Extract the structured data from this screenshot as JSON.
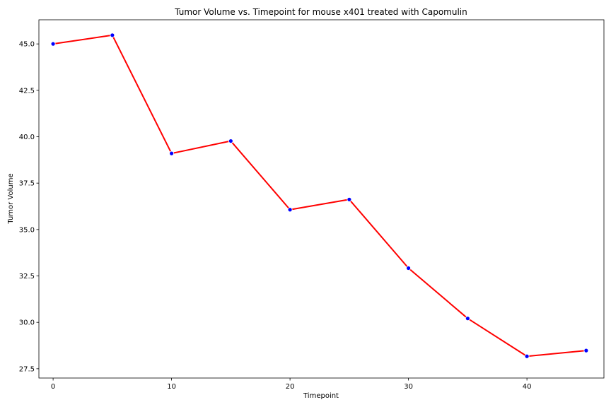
{
  "chart_data": {
    "type": "line",
    "title": "Tumor Volume vs. Timepoint for mouse x401 treated with Capomulin",
    "xlabel": "Timepoint",
    "ylabel": "Tumor Volume",
    "xlim": [
      -1.2,
      46.5
    ],
    "ylim": [
      27.0,
      46.3
    ],
    "xticks": [
      0,
      10,
      20,
      30,
      40
    ],
    "xtick_labels": [
      "0",
      "10",
      "20",
      "30",
      "40"
    ],
    "yticks": [
      27.5,
      30.0,
      32.5,
      35.0,
      37.5,
      40.0,
      42.5,
      45.0
    ],
    "ytick_labels": [
      "27.5",
      "30.0",
      "32.5",
      "35.0",
      "37.5",
      "40.0",
      "42.5",
      "45.0"
    ],
    "grid": false,
    "line_color": "#ff0000",
    "marker_color": "#0000ff",
    "series": [
      {
        "x": [
          0,
          5,
          10,
          15,
          20,
          25,
          30,
          35,
          40,
          45
        ],
        "y": [
          45.0,
          45.47,
          39.1,
          39.77,
          36.07,
          36.62,
          32.92,
          30.21,
          28.17,
          28.48
        ]
      }
    ]
  }
}
